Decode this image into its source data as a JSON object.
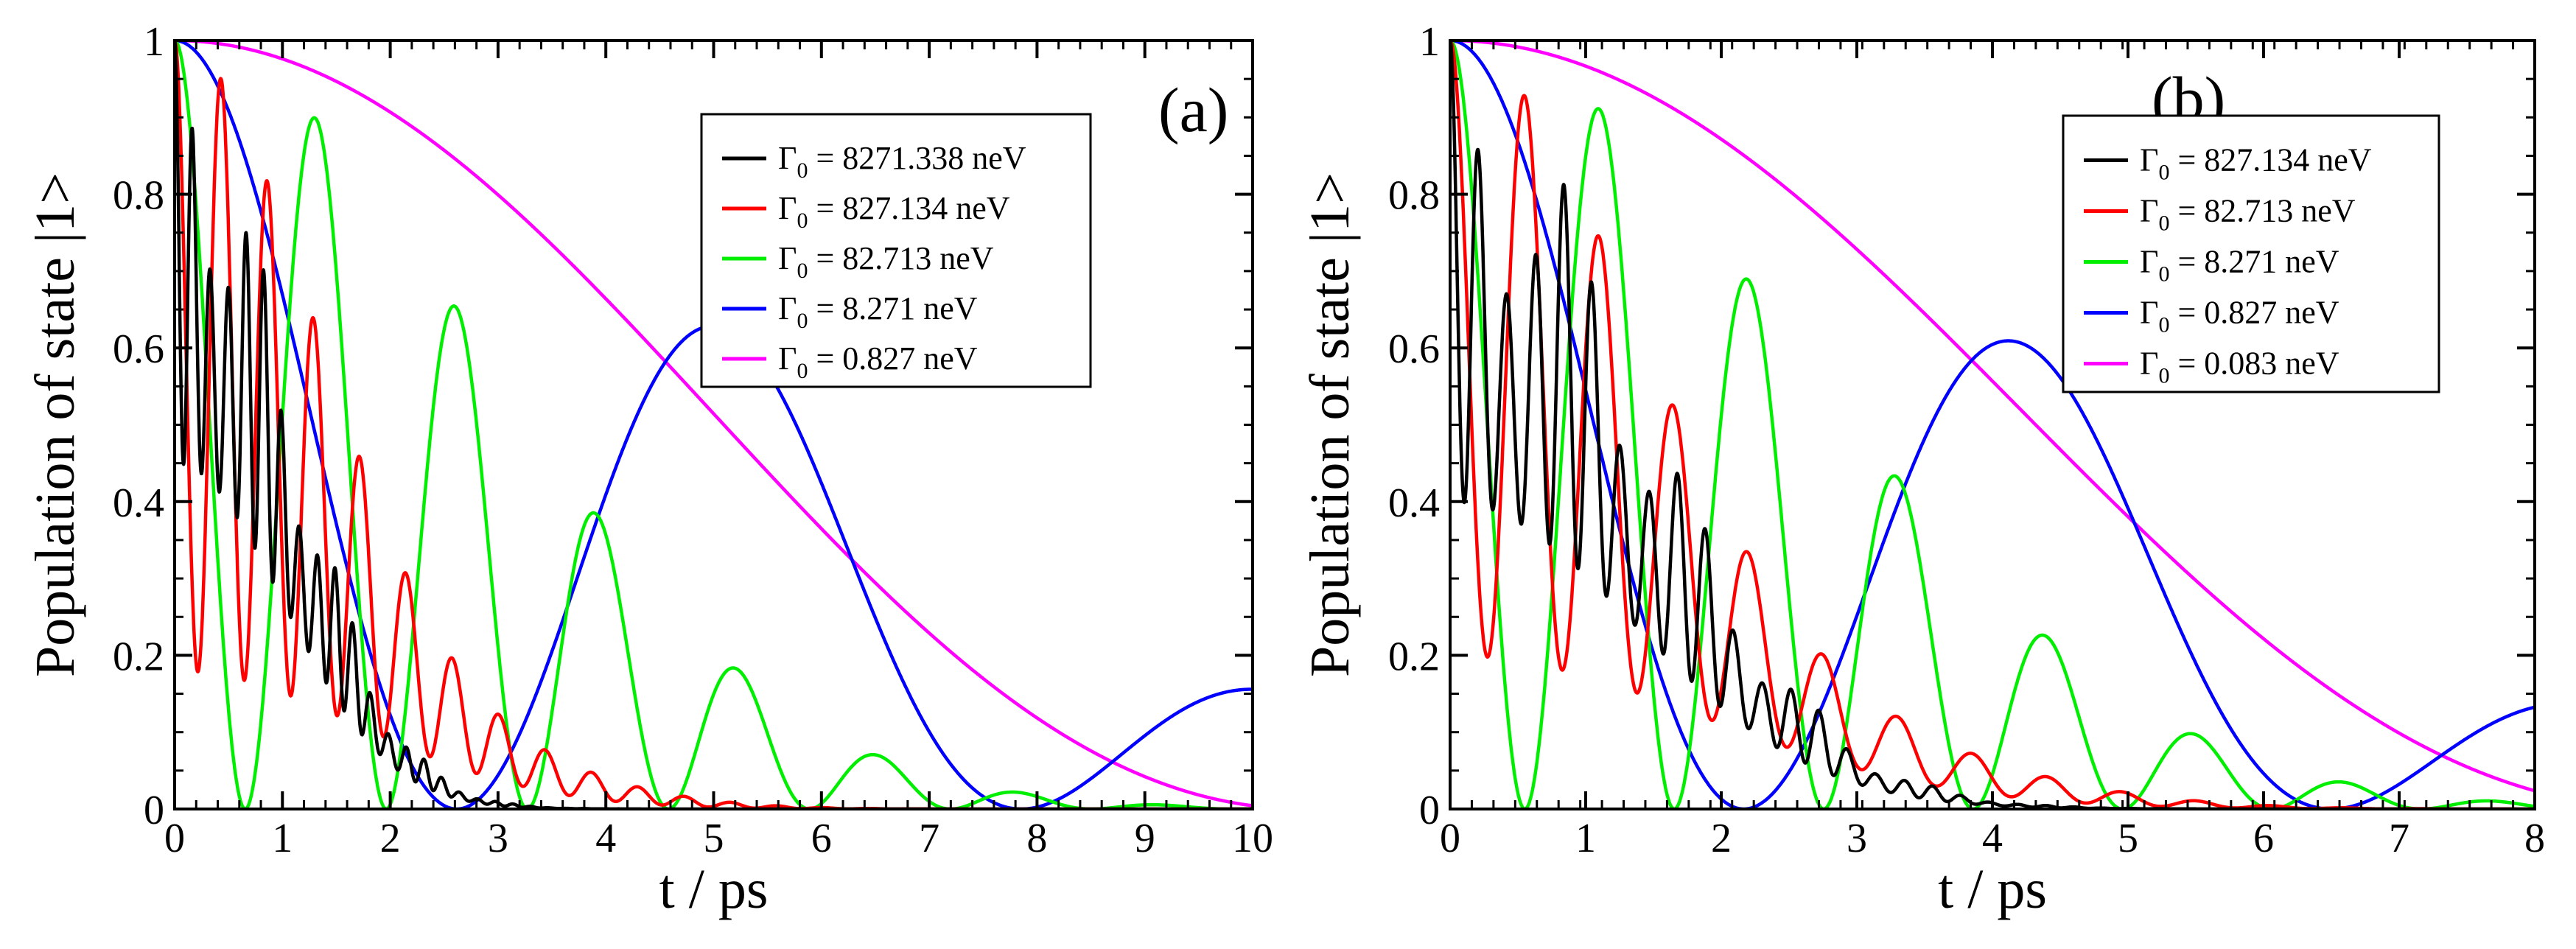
{
  "chart_data": [
    {
      "type": "line",
      "panel_label": "(a)",
      "xlabel": "t / ps",
      "ylabel": "Population of state |1>",
      "xlim": [
        0,
        10
      ],
      "ylim": [
        0,
        1
      ],
      "xticks": [
        "0",
        "1",
        "2",
        "3",
        "4",
        "5",
        "6",
        "7",
        "8",
        "9",
        "10"
      ],
      "yticks": [
        "0",
        "0.2",
        "0.4",
        "0.6",
        "0.8",
        "1"
      ],
      "legend_position": "top-right",
      "series": [
        {
          "name": "Γ0 = 8271.338 neV",
          "symbol": "Γ",
          "sub": "0",
          "rest": " = 8271.338 neV",
          "color": "#000000",
          "tau": 1.4,
          "omega": 38,
          "weight": 0.55,
          "d": 8
        },
        {
          "name": "Γ0 = 827.134 neV",
          "symbol": "Γ",
          "sub": "0",
          "rest": " = 827.134 neV",
          "color": "#ff0000",
          "tau": 2.4,
          "omega": 14.6,
          "weight": 0.82,
          "d": 1
        },
        {
          "name": "Γ0 = 82.713 neV",
          "symbol": "Γ",
          "sub": "0",
          "rest": " = 82.713 neV",
          "color": "#00ee00",
          "tau": 4.0,
          "omega": 4.8,
          "weight": 1.0,
          "d": 0
        },
        {
          "name": "Γ0 = 8.271 neV",
          "symbol": "Γ",
          "sub": "0",
          "rest": " = 8.271 neV",
          "color": "#0000ff",
          "tau": 7.5,
          "omega": 1.2,
          "weight": 1.0,
          "d": 0
        },
        {
          "name": "Γ0 = 0.827 neV",
          "symbol": "Γ",
          "sub": "0",
          "rest": " = 0.827 neV",
          "color": "#ff00ff",
          "tau": 25,
          "omega": 0.3,
          "weight": 1.0,
          "d": 0
        }
      ]
    },
    {
      "type": "line",
      "panel_label": "(b)",
      "xlabel": "t / ps",
      "ylabel": "Population of state |1>",
      "xlim": [
        0,
        8
      ],
      "ylim": [
        0,
        1
      ],
      "xticks": [
        "0",
        "1",
        "2",
        "3",
        "4",
        "5",
        "6",
        "7",
        "8"
      ],
      "yticks": [
        "0",
        "0.2",
        "0.4",
        "0.6",
        "0.8",
        "1"
      ],
      "legend_position": "top-right",
      "series": [
        {
          "name": "Γ0 = 827.134 neV",
          "symbol": "Γ",
          "sub": "0",
          "rest": " = 827.134 neV",
          "color": "#000000",
          "tau": 1.9,
          "omega": 30,
          "weight": 0.6,
          "d": 7
        },
        {
          "name": "Γ0 = 82.713 neV",
          "symbol": "Γ",
          "sub": "0",
          "rest": " = 82.713 neV",
          "color": "#ff0000",
          "tau": 2.6,
          "omega": 11.4,
          "weight": 0.8,
          "d": 1
        },
        {
          "name": "Γ0 = 8.271 neV",
          "symbol": "Γ",
          "sub": "0",
          "rest": " = 8.271 neV",
          "color": "#00ee00",
          "tau": 3.6,
          "omega": 5.7,
          "weight": 1.0,
          "d": 0
        },
        {
          "name": "Γ0 = 0.827 neV",
          "symbol": "Γ",
          "sub": "0",
          "rest": " = 0.827 neV",
          "color": "#0000ff",
          "tau": 6.0,
          "omega": 1.45,
          "weight": 1.0,
          "d": 0
        },
        {
          "name": "Γ0 = 0.083 neV",
          "symbol": "Γ",
          "sub": "0",
          "rest": " = 0.083 neV",
          "color": "#ff00ff",
          "tau": 18,
          "omega": 0.35,
          "weight": 1.0,
          "d": 0
        }
      ]
    }
  ]
}
